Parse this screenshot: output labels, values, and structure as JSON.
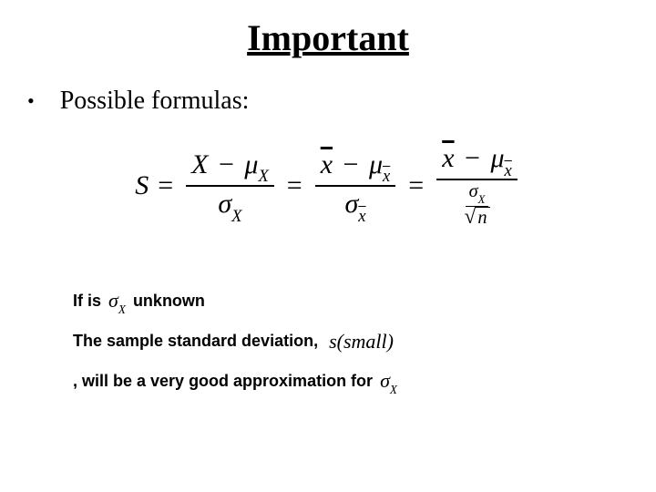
{
  "title": "Important",
  "bullet": "Possible formulas:",
  "formula": {
    "lhs": "S",
    "term1": {
      "num_left": "X",
      "num_right_sym": "μ",
      "num_right_sub": "X",
      "den_sym": "σ",
      "den_sub": "X"
    },
    "term2": {
      "num_left_bar": "x",
      "num_right_sym": "μ",
      "num_right_sub_bar": "x",
      "den_sym": "σ",
      "den_sub_bar": "x"
    },
    "term3": {
      "num_left_bar": "x",
      "num_right_sym": "μ",
      "num_right_sub_bar": "x",
      "den_num_sym": "σ",
      "den_num_sub": "X",
      "den_den_rad": "n"
    }
  },
  "line1": {
    "pre": "If is",
    "sigma": "σ",
    "sigma_sub": "X",
    "post": "unknown"
  },
  "line2": {
    "text": "The sample standard deviation,",
    "ssmall": "s(small)"
  },
  "line3": {
    "text": ", will be a very good approximation for",
    "sigma": "σ",
    "sigma_sub": "X"
  },
  "colors": {
    "text": "#000000",
    "bg": "#ffffff"
  },
  "typography": {
    "title_pt": 40,
    "body_pt": 28,
    "bold_pt": 18,
    "formula_pt": 30
  }
}
